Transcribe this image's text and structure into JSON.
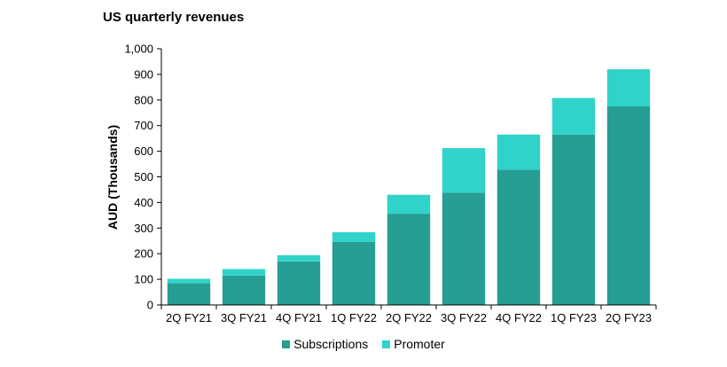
{
  "chart_data": {
    "type": "bar",
    "stacked": true,
    "title": "US quarterly revenues",
    "xlabel": "",
    "ylabel": "AUD (Thousands)",
    "ylim": [
      0,
      1000
    ],
    "yticks": [
      0,
      100,
      200,
      300,
      400,
      500,
      600,
      700,
      800,
      900,
      1000
    ],
    "ytick_labels": [
      "0",
      "100",
      "200",
      "300",
      "400",
      "500",
      "600",
      "700",
      "800",
      "900",
      "1,000"
    ],
    "categories": [
      "2Q FY21",
      "3Q FY21",
      "4Q FY21",
      "1Q FY22",
      "2Q FY22",
      "3Q FY22",
      "4Q FY22",
      "1Q FY23",
      "2Q FY23"
    ],
    "series": [
      {
        "name": "Subscriptions",
        "color": "#269e94",
        "values": [
          85,
          115,
          170,
          246,
          356,
          438,
          528,
          665,
          775
        ]
      },
      {
        "name": "Promoter",
        "color": "#30d3c9",
        "values": [
          17,
          25,
          24,
          38,
          74,
          174,
          137,
          143,
          145
        ]
      }
    ],
    "grid": false,
    "legend_position": "bottom-center"
  }
}
